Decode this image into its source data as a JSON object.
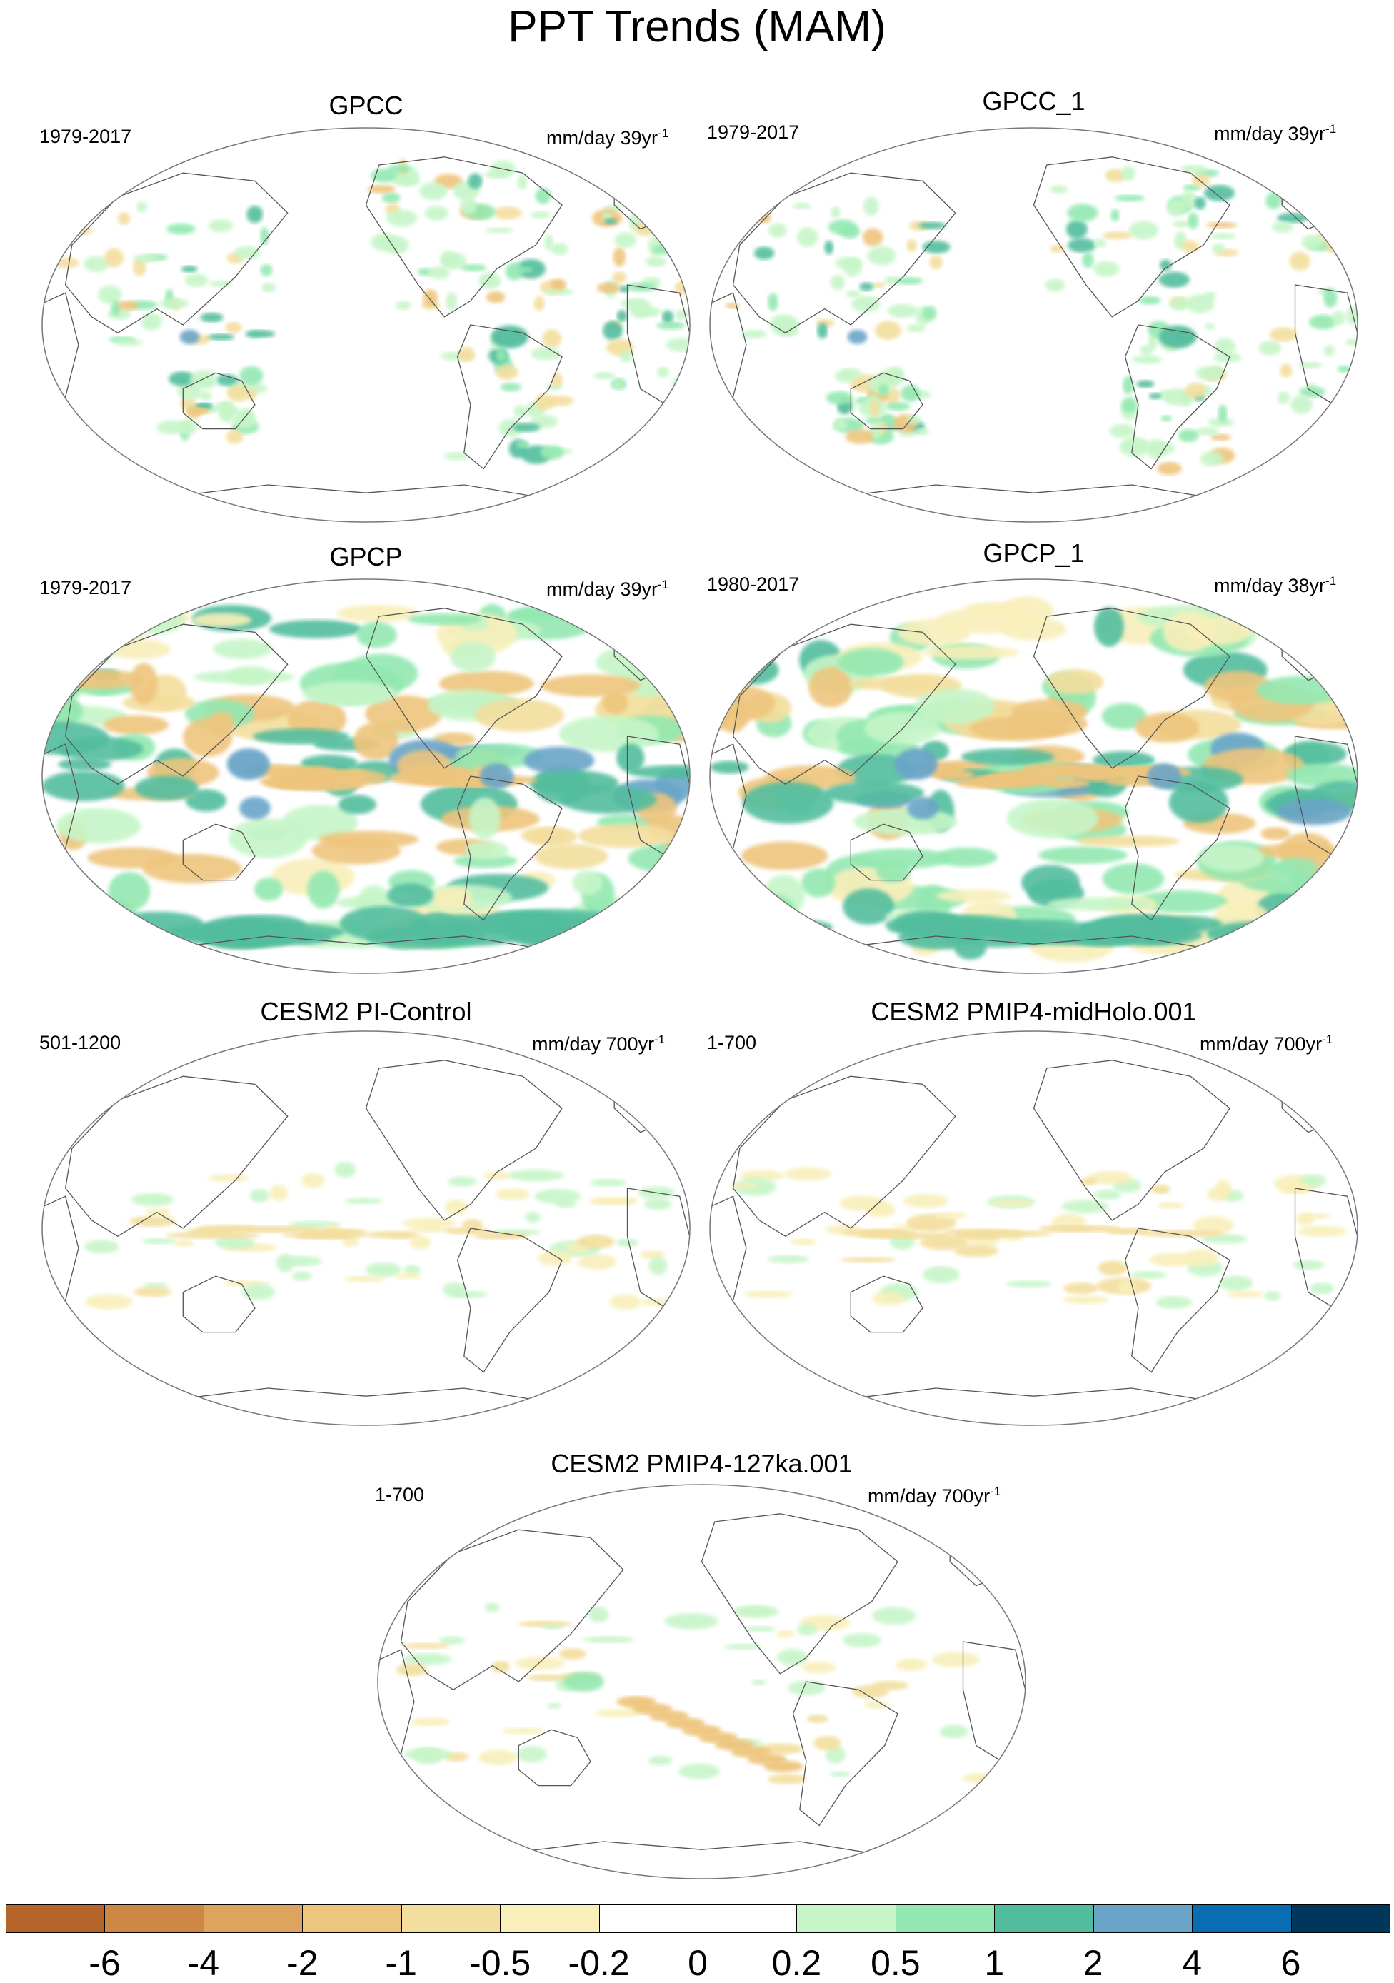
{
  "title": "PPT Trends (MAM)",
  "panels": [
    {
      "title": "GPCC",
      "period": "1979-2017",
      "units": "mm/day 39yr",
      "units_sup": "-1",
      "field": "obs_land"
    },
    {
      "title": "GPCC_1",
      "period": "1979-2017",
      "units": "mm/day 39yr",
      "units_sup": "-1",
      "field": "obs_land"
    },
    {
      "title": "GPCP",
      "period": "1979-2017",
      "units": "mm/day 39yr",
      "units_sup": "-1",
      "field": "obs_global"
    },
    {
      "title": "GPCP_1",
      "period": "1980-2017",
      "units": "mm/day 38yr",
      "units_sup": "-1",
      "field": "obs_global"
    },
    {
      "title": "CESM2 PI-Control",
      "period": "501-1200",
      "units": "mm/day 700yr",
      "units_sup": "-1",
      "field": "model_weak"
    },
    {
      "title": "CESM2 PMIP4-midHolo.001",
      "period": "1-700",
      "units": "mm/day 700yr",
      "units_sup": "-1",
      "field": "model_weak"
    },
    {
      "title": "CESM2 PMIP4-127ka.001",
      "period": "1-700",
      "units": "mm/day 700yr",
      "units_sup": "-1",
      "field": "model_127ka"
    }
  ],
  "colorbar": {
    "colors": [
      "#b5652a",
      "#cd8843",
      "#dda35f",
      "#eec57d",
      "#f3de9d",
      "#f8efba",
      "#ffffff",
      "#ffffff",
      "#c6f5c8",
      "#93e8b1",
      "#52bd9e",
      "#6aa5c8",
      "#086db3",
      "#00375a"
    ],
    "labels": [
      "-6",
      "-4",
      "-2",
      "-1",
      "-0.5",
      "-0.2",
      "0",
      "0.2",
      "0.5",
      "1",
      "2",
      "4",
      "6"
    ]
  }
}
